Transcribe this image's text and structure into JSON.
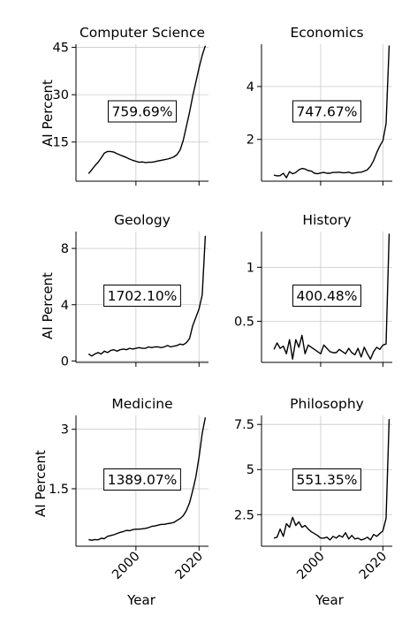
{
  "figure": {
    "xlabel": "Year",
    "ylabel": "AI Percent"
  },
  "chart_data": [
    {
      "type": "line",
      "title": "Computer Science",
      "annotation": "759.69%",
      "xlabel": "",
      "ylabel": "AI Percent",
      "xlim": [
        1981,
        2023
      ],
      "ylim": [
        2.6,
        46
      ],
      "yticks": [
        15,
        30,
        45
      ],
      "xticks": [
        2000,
        2020
      ],
      "x": [
        1985,
        1986,
        1987,
        1988,
        1989,
        1990,
        1991,
        1992,
        1993,
        1994,
        1995,
        1996,
        1997,
        1998,
        1999,
        2000,
        2001,
        2002,
        2003,
        2004,
        2005,
        2006,
        2007,
        2008,
        2009,
        2010,
        2011,
        2012,
        2013,
        2014,
        2015,
        2016,
        2017,
        2018,
        2019,
        2020,
        2021,
        2022
      ],
      "series": [
        {
          "values": [
            5.0,
            6.2,
            7.5,
            8.6,
            10.0,
            11.5,
            12.0,
            12.0,
            11.8,
            11.3,
            10.9,
            10.5,
            10.1,
            9.6,
            9.2,
            8.9,
            8.6,
            8.7,
            8.5,
            8.6,
            8.6,
            8.8,
            9.0,
            9.2,
            9.4,
            9.6,
            9.9,
            10.3,
            11.0,
            12.5,
            15.5,
            20.0,
            24.5,
            29.5,
            34.0,
            38.5,
            42.5,
            45.5
          ]
        }
      ]
    },
    {
      "type": "line",
      "title": "Economics",
      "annotation": "747.67%",
      "xlabel": "",
      "ylabel": "",
      "xlim": [
        1981,
        2023
      ],
      "ylim": [
        0.42,
        5.6
      ],
      "yticks": [
        2,
        4
      ],
      "xticks": [
        2000,
        2020
      ],
      "x": [
        1985,
        1986,
        1987,
        1988,
        1989,
        1990,
        1991,
        1992,
        1993,
        1994,
        1995,
        1996,
        1997,
        1998,
        1999,
        2000,
        2001,
        2002,
        2003,
        2004,
        2005,
        2006,
        2007,
        2008,
        2009,
        2010,
        2011,
        2012,
        2013,
        2014,
        2015,
        2016,
        2017,
        2018,
        2019,
        2020,
        2021,
        2022
      ],
      "series": [
        {
          "values": [
            0.65,
            0.62,
            0.63,
            0.72,
            0.55,
            0.78,
            0.7,
            0.75,
            0.85,
            0.9,
            0.88,
            0.82,
            0.8,
            0.72,
            0.7,
            0.73,
            0.75,
            0.72,
            0.72,
            0.75,
            0.75,
            0.76,
            0.74,
            0.74,
            0.76,
            0.72,
            0.73,
            0.75,
            0.76,
            0.8,
            0.85,
            0.98,
            1.2,
            1.5,
            1.75,
            1.95,
            2.6,
            5.55
          ]
        }
      ]
    },
    {
      "type": "line",
      "title": "Geology",
      "annotation": "1702.10%",
      "xlabel": "",
      "ylabel": "AI Percent",
      "xlim": [
        1981,
        2023
      ],
      "ylim": [
        -0.1,
        9.2
      ],
      "yticks": [
        0,
        4,
        8
      ],
      "xticks": [
        2000,
        2020
      ],
      "x": [
        1985,
        1986,
        1987,
        1988,
        1989,
        1990,
        1991,
        1992,
        1993,
        1994,
        1995,
        1996,
        1997,
        1998,
        1999,
        2000,
        2001,
        2002,
        2003,
        2004,
        2005,
        2006,
        2007,
        2008,
        2009,
        2010,
        2011,
        2012,
        2013,
        2014,
        2015,
        2016,
        2017,
        2018,
        2019,
        2020,
        2021,
        2022
      ],
      "series": [
        {
          "values": [
            0.5,
            0.35,
            0.5,
            0.6,
            0.5,
            0.7,
            0.6,
            0.75,
            0.8,
            0.7,
            0.8,
            0.85,
            0.8,
            0.9,
            0.85,
            0.9,
            0.95,
            0.9,
            0.9,
            1.0,
            0.95,
            1.0,
            1.0,
            0.95,
            1.0,
            1.1,
            1.0,
            1.05,
            1.1,
            1.2,
            1.15,
            1.3,
            1.6,
            2.5,
            3.1,
            3.7,
            4.7,
            8.9
          ]
        }
      ]
    },
    {
      "type": "line",
      "title": "History",
      "annotation": "400.48%",
      "xlabel": "",
      "ylabel": "",
      "xlim": [
        1981,
        2023
      ],
      "ylim": [
        0.12,
        1.33
      ],
      "yticks": [
        0.5,
        1.0
      ],
      "xticks": [
        2000,
        2020
      ],
      "x": [
        1985,
        1986,
        1987,
        1988,
        1989,
        1990,
        1991,
        1992,
        1993,
        1994,
        1995,
        1996,
        1997,
        1998,
        1999,
        2000,
        2001,
        2002,
        2003,
        2004,
        2005,
        2006,
        2007,
        2008,
        2009,
        2010,
        2011,
        2012,
        2013,
        2014,
        2015,
        2016,
        2017,
        2018,
        2019,
        2020,
        2021,
        2022
      ],
      "series": [
        {
          "values": [
            0.24,
            0.3,
            0.25,
            0.27,
            0.2,
            0.33,
            0.15,
            0.33,
            0.26,
            0.37,
            0.2,
            0.28,
            0.26,
            0.24,
            0.22,
            0.2,
            0.28,
            0.25,
            0.22,
            0.21,
            0.21,
            0.24,
            0.22,
            0.2,
            0.25,
            0.21,
            0.19,
            0.25,
            0.17,
            0.26,
            0.2,
            0.15,
            0.22,
            0.26,
            0.24,
            0.28,
            0.29,
            1.31
          ]
        }
      ]
    },
    {
      "type": "line",
      "title": "Medicine",
      "annotation": "1389.07%",
      "xlabel": "Year",
      "ylabel": "AI Percent",
      "xlim": [
        1981,
        2023
      ],
      "ylim": [
        0.05,
        3.35
      ],
      "yticks": [
        1.5,
        3.0
      ],
      "xticks": [
        2000,
        2020
      ],
      "x": [
        1985,
        1986,
        1987,
        1988,
        1989,
        1990,
        1991,
        1992,
        1993,
        1994,
        1995,
        1996,
        1997,
        1998,
        1999,
        2000,
        2001,
        2002,
        2003,
        2004,
        2005,
        2006,
        2007,
        2008,
        2009,
        2010,
        2011,
        2012,
        2013,
        2014,
        2015,
        2016,
        2017,
        2018,
        2019,
        2020,
        2021,
        2022
      ],
      "series": [
        {
          "values": [
            0.22,
            0.2,
            0.22,
            0.21,
            0.25,
            0.24,
            0.3,
            0.32,
            0.34,
            0.37,
            0.4,
            0.42,
            0.45,
            0.44,
            0.47,
            0.48,
            0.48,
            0.49,
            0.5,
            0.52,
            0.55,
            0.56,
            0.58,
            0.6,
            0.6,
            0.62,
            0.63,
            0.65,
            0.7,
            0.75,
            0.82,
            0.95,
            1.15,
            1.45,
            1.8,
            2.3,
            2.9,
            3.3
          ]
        }
      ]
    },
    {
      "type": "line",
      "title": "Philosophy",
      "annotation": "551.35%",
      "xlabel": "Year",
      "ylabel": "",
      "xlim": [
        1981,
        2023
      ],
      "ylim": [
        0.75,
        8.0
      ],
      "yticks": [
        2.5,
        5.0,
        7.5
      ],
      "xticks": [
        2000,
        2020
      ],
      "x": [
        1985,
        1986,
        1987,
        1988,
        1989,
        1990,
        1991,
        1992,
        1993,
        1994,
        1995,
        1996,
        1997,
        1998,
        1999,
        2000,
        2001,
        2002,
        2003,
        2004,
        2005,
        2006,
        2007,
        2008,
        2009,
        2010,
        2011,
        2012,
        2013,
        2014,
        2015,
        2016,
        2017,
        2018,
        2019,
        2020,
        2021,
        2022
      ],
      "series": [
        {
          "values": [
            1.2,
            1.25,
            1.7,
            1.3,
            2.0,
            1.8,
            2.35,
            1.9,
            2.1,
            1.8,
            1.9,
            1.7,
            1.55,
            1.45,
            1.35,
            1.2,
            1.2,
            1.25,
            1.1,
            1.3,
            1.2,
            1.35,
            1.25,
            1.5,
            1.15,
            1.35,
            1.15,
            1.2,
            1.1,
            1.15,
            1.25,
            1.1,
            1.4,
            1.3,
            1.45,
            1.6,
            2.3,
            7.8
          ]
        }
      ]
    }
  ]
}
